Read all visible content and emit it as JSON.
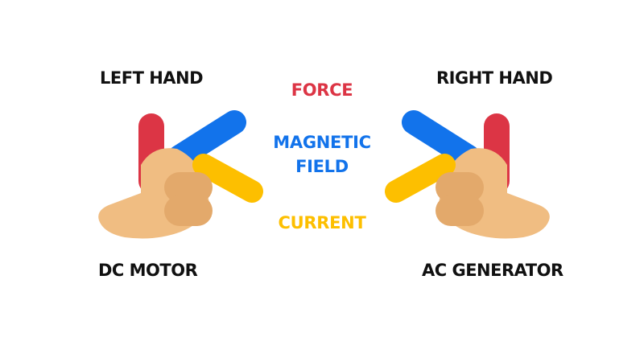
{
  "labels": {
    "left_hand": "LEFT HAND",
    "right_hand": "RIGHT HAND",
    "left_use": "DC MOTOR",
    "right_use": "AC GENERATOR"
  },
  "legend": {
    "force": "FORCE",
    "magnetic_field_line1": "MAGNETIC",
    "magnetic_field_line2": "FIELD",
    "current": "CURRENT"
  },
  "colors": {
    "force": "#dc3545",
    "magnetic_field": "#1273eb",
    "current": "#fdbf00",
    "skin": "#f0bd82",
    "skin_shade": "#e3a96b",
    "text": "#111111"
  }
}
